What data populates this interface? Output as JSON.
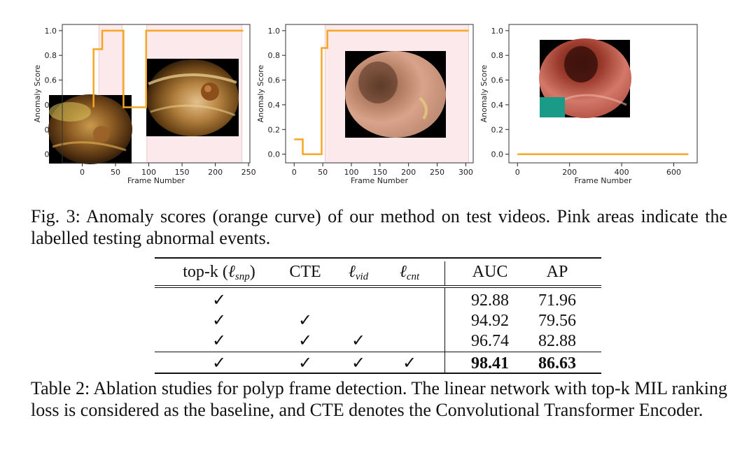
{
  "figure": {
    "caption": "Fig. 3: Anomaly scores (orange curve) of our method on test videos. Pink areas indicate the labelled testing abnormal events.",
    "colors": {
      "score_curve": "#f5a623",
      "abnormal_region": "#fbe9ec",
      "region_edge": "#f3c7cf",
      "annotation_box": "#1a9b87"
    },
    "panels": [
      {
        "frame_thumbnails": 2
      },
      {
        "frame_thumbnails": 1
      },
      {
        "frame_thumbnails": 1
      }
    ]
  },
  "chart_data": [
    {
      "type": "line",
      "xlabel": "Frame Number",
      "ylabel": "Anomaly Score",
      "xlim": [
        -30,
        252
      ],
      "ylim": [
        -0.07,
        1.05
      ],
      "xticks": [
        "0",
        "50",
        "100",
        "150",
        "200",
        "250"
      ],
      "yticks": [
        "0.0",
        "0.2",
        "0.4",
        "0.6",
        "0.8",
        "1.0"
      ],
      "abnormal_regions": [
        [
          25,
          60
        ],
        [
          97,
          240
        ]
      ],
      "series": [
        {
          "x": [
            17,
            17,
            30,
            30,
            62,
            62,
            96,
            96,
            242
          ],
          "y": [
            0.38,
            0.85,
            0.85,
            1.0,
            1.0,
            0.38,
            0.38,
            1.0,
            1.0
          ]
        }
      ]
    },
    {
      "type": "line",
      "xlabel": "Frame Number",
      "ylabel": "Anomaly Score",
      "xlim": [
        -15,
        313
      ],
      "ylim": [
        -0.07,
        1.05
      ],
      "xticks": [
        "0",
        "50",
        "100",
        "150",
        "200",
        "250",
        "300"
      ],
      "yticks": [
        "0.0",
        "0.2",
        "0.4",
        "0.6",
        "0.8",
        "1.0"
      ],
      "abnormal_regions": [
        [
          54,
          305
        ]
      ],
      "series": [
        {
          "x": [
            0,
            15,
            15,
            48,
            48,
            58,
            58,
            305
          ],
          "y": [
            0.12,
            0.12,
            0.0,
            0.0,
            0.86,
            0.86,
            1.0,
            1.0
          ]
        }
      ]
    },
    {
      "type": "line",
      "xlabel": "Frame Number",
      "ylabel": "Anomaly Score",
      "xlim": [
        -33,
        690
      ],
      "ylim": [
        -0.07,
        1.05
      ],
      "xticks": [
        "0",
        "200",
        "400",
        "600"
      ],
      "yticks": [
        "0.0",
        "0.2",
        "0.4",
        "0.6",
        "0.8",
        "1.0"
      ],
      "abnormal_regions": [],
      "series": [
        {
          "x": [
            0,
            656
          ],
          "y": [
            0.0,
            0.0
          ]
        }
      ]
    }
  ],
  "table": {
    "caption": "Table 2: Ablation studies for polyp frame detection. The linear network with top-k MIL ranking loss is considered as the baseline, and CTE denotes the Convolutional Transformer Encoder.",
    "headers": {
      "topk": "top-k (",
      "topk_sym": "ℓ",
      "topk_sub": "snp",
      "topk_close": ")",
      "cte": "CTE",
      "vid_sym": "ℓ",
      "vid_sub": "vid",
      "cnt_sym": "ℓ",
      "cnt_sub": "cnt",
      "auc": "AUC",
      "ap": "AP"
    },
    "check": "✓",
    "rows": [
      {
        "topk": true,
        "cte": false,
        "vid": false,
        "cnt": false,
        "auc": "92.88",
        "ap": "71.96",
        "bold": false
      },
      {
        "topk": true,
        "cte": true,
        "vid": false,
        "cnt": false,
        "auc": "94.92",
        "ap": "79.56",
        "bold": false
      },
      {
        "topk": true,
        "cte": true,
        "vid": true,
        "cnt": false,
        "auc": "96.74",
        "ap": "82.88",
        "bold": false
      },
      {
        "topk": true,
        "cte": true,
        "vid": true,
        "cnt": true,
        "auc": "98.41",
        "ap": "86.63",
        "bold": true
      }
    ]
  }
}
